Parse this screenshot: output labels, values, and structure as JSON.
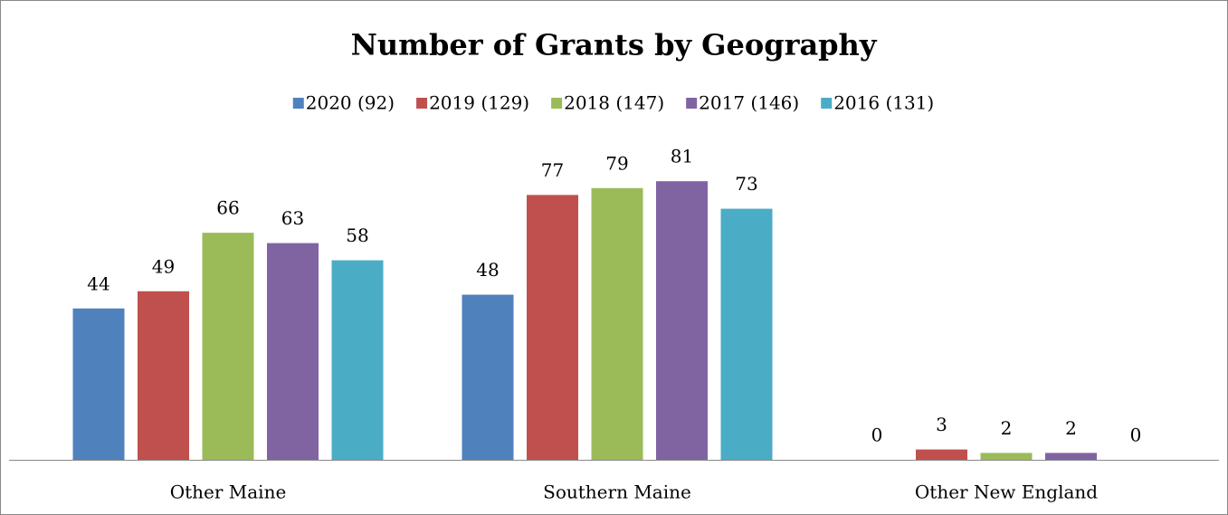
{
  "chart_data": {
    "type": "bar",
    "title": "Number of Grants by Geography",
    "categories": [
      "Other Maine",
      "Southern Maine",
      "Other New England"
    ],
    "series": [
      {
        "name": "2020 (92)",
        "color": "#4f81bd",
        "values": [
          44,
          48,
          0
        ]
      },
      {
        "name": "2019 (129)",
        "color": "#c0504d",
        "values": [
          49,
          77,
          3
        ]
      },
      {
        "name": "2018 (147)",
        "color": "#9bbb59",
        "values": [
          66,
          79,
          2
        ]
      },
      {
        "name": "2017 (146)",
        "color": "#8064a2",
        "values": [
          63,
          81,
          2
        ]
      },
      {
        "name": "2016 (131)",
        "color": "#4bacc6",
        "values": [
          58,
          73,
          0
        ]
      }
    ],
    "legend": "top"
  }
}
